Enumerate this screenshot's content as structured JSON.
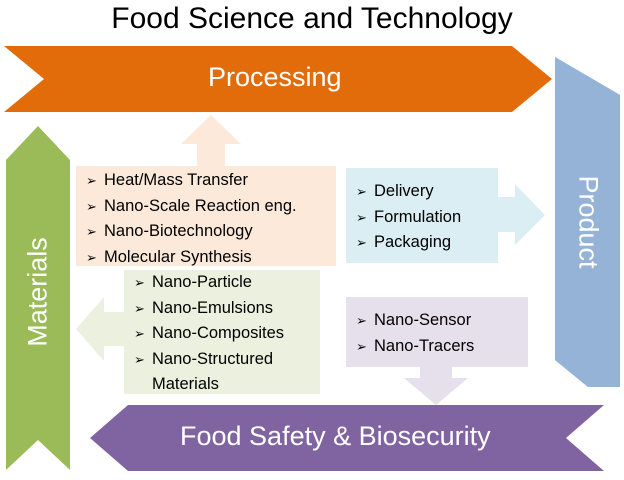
{
  "title": "Food Science and Technology",
  "arrows": {
    "processing": "Processing",
    "product": "Product",
    "materials": "Materials",
    "food_safety": "Food Safety & Biosecurity"
  },
  "boxes": {
    "processing_box": {
      "items": [
        "Heat/Mass Transfer",
        "Nano-Scale Reaction eng.",
        "Nano-Biotechnology",
        "Molecular Synthesis"
      ]
    },
    "product_box": {
      "items": [
        "Delivery",
        "Formulation",
        "Packaging"
      ]
    },
    "materials_box": {
      "items": [
        "Nano-Particle",
        "Nano-Emulsions",
        "Nano-Composites",
        "Nano-Structured Materials"
      ]
    },
    "safety_box": {
      "items": [
        "Nano-Sensor",
        "Nano-Tracers"
      ]
    }
  },
  "bullet_symbol": "➢",
  "colors": {
    "processing": "#E36C0A",
    "product": "#95B3D7",
    "materials": "#9BBB59",
    "food_safety": "#8064A2",
    "processing_box": "#FDE9D9",
    "product_box": "#DAEEF3",
    "materials_box": "#EBF1DE",
    "safety_box": "#E5E0EC"
  }
}
